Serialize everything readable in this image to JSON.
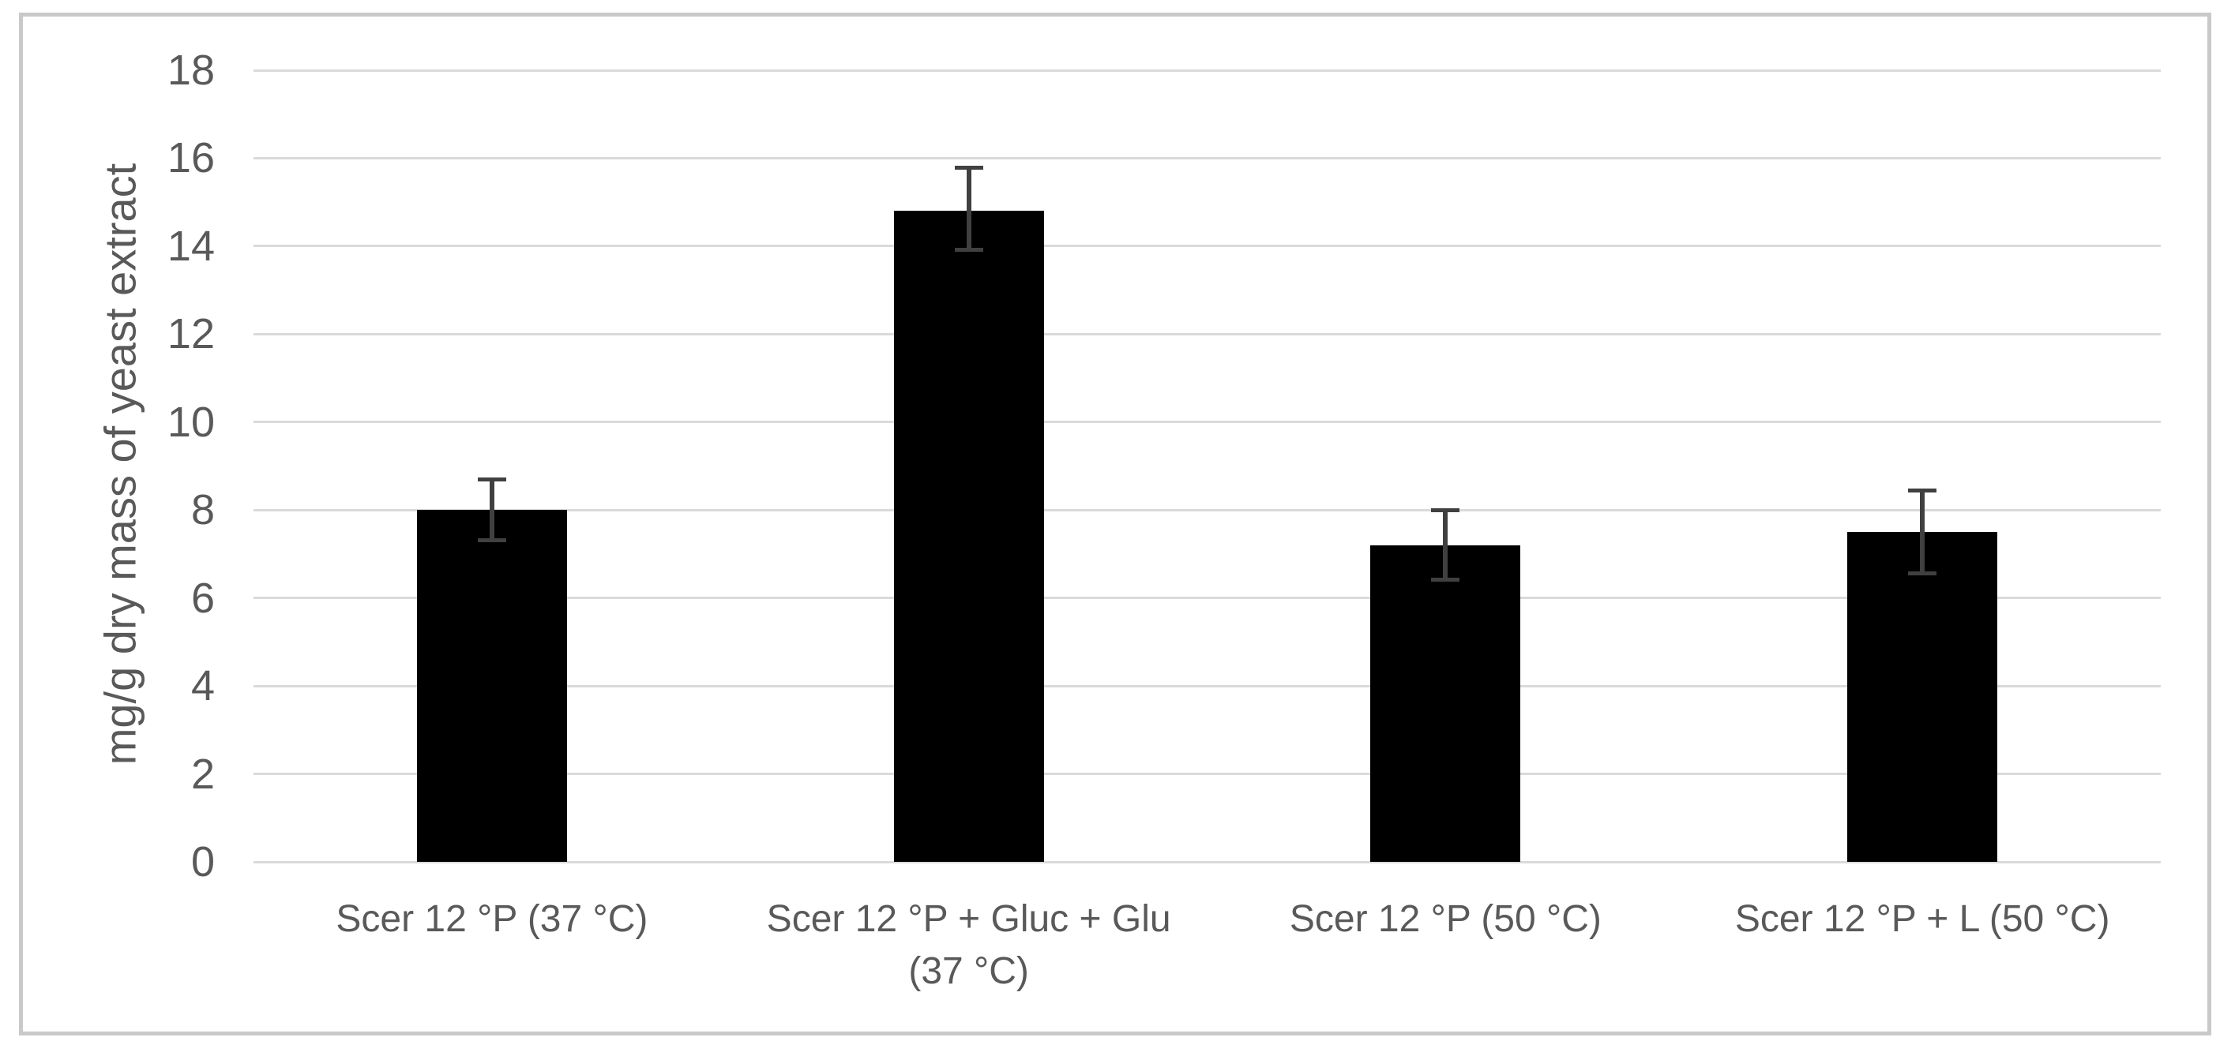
{
  "chart_data": {
    "type": "bar",
    "title": "",
    "xlabel": "",
    "ylabel": "mg/g dry mass of yeast extract",
    "categories": [
      "Scer 12 °P (37 °C)",
      "Scer 12 °P + Gluc + Glu\n(37 °C)",
      "Scer 12 °P (50 °C)",
      "Scer 12 °P + L (50 °C)"
    ],
    "values": [
      8.0,
      14.8,
      7.2,
      7.5
    ],
    "error_up": [
      0.7,
      1.0,
      0.8,
      0.95
    ],
    "error_down": [
      0.7,
      0.9,
      0.8,
      0.95
    ],
    "ylim": [
      0,
      18
    ],
    "yticks": [
      0,
      2,
      4,
      6,
      8,
      10,
      12,
      14,
      16,
      18
    ],
    "grid": true,
    "legend": null,
    "colors": {
      "bar": "#000000",
      "error_bar": "#404040",
      "gridline": "#dadada",
      "text": "#595959",
      "frame_border": "#c9c9c9",
      "background": "#ffffff"
    }
  }
}
